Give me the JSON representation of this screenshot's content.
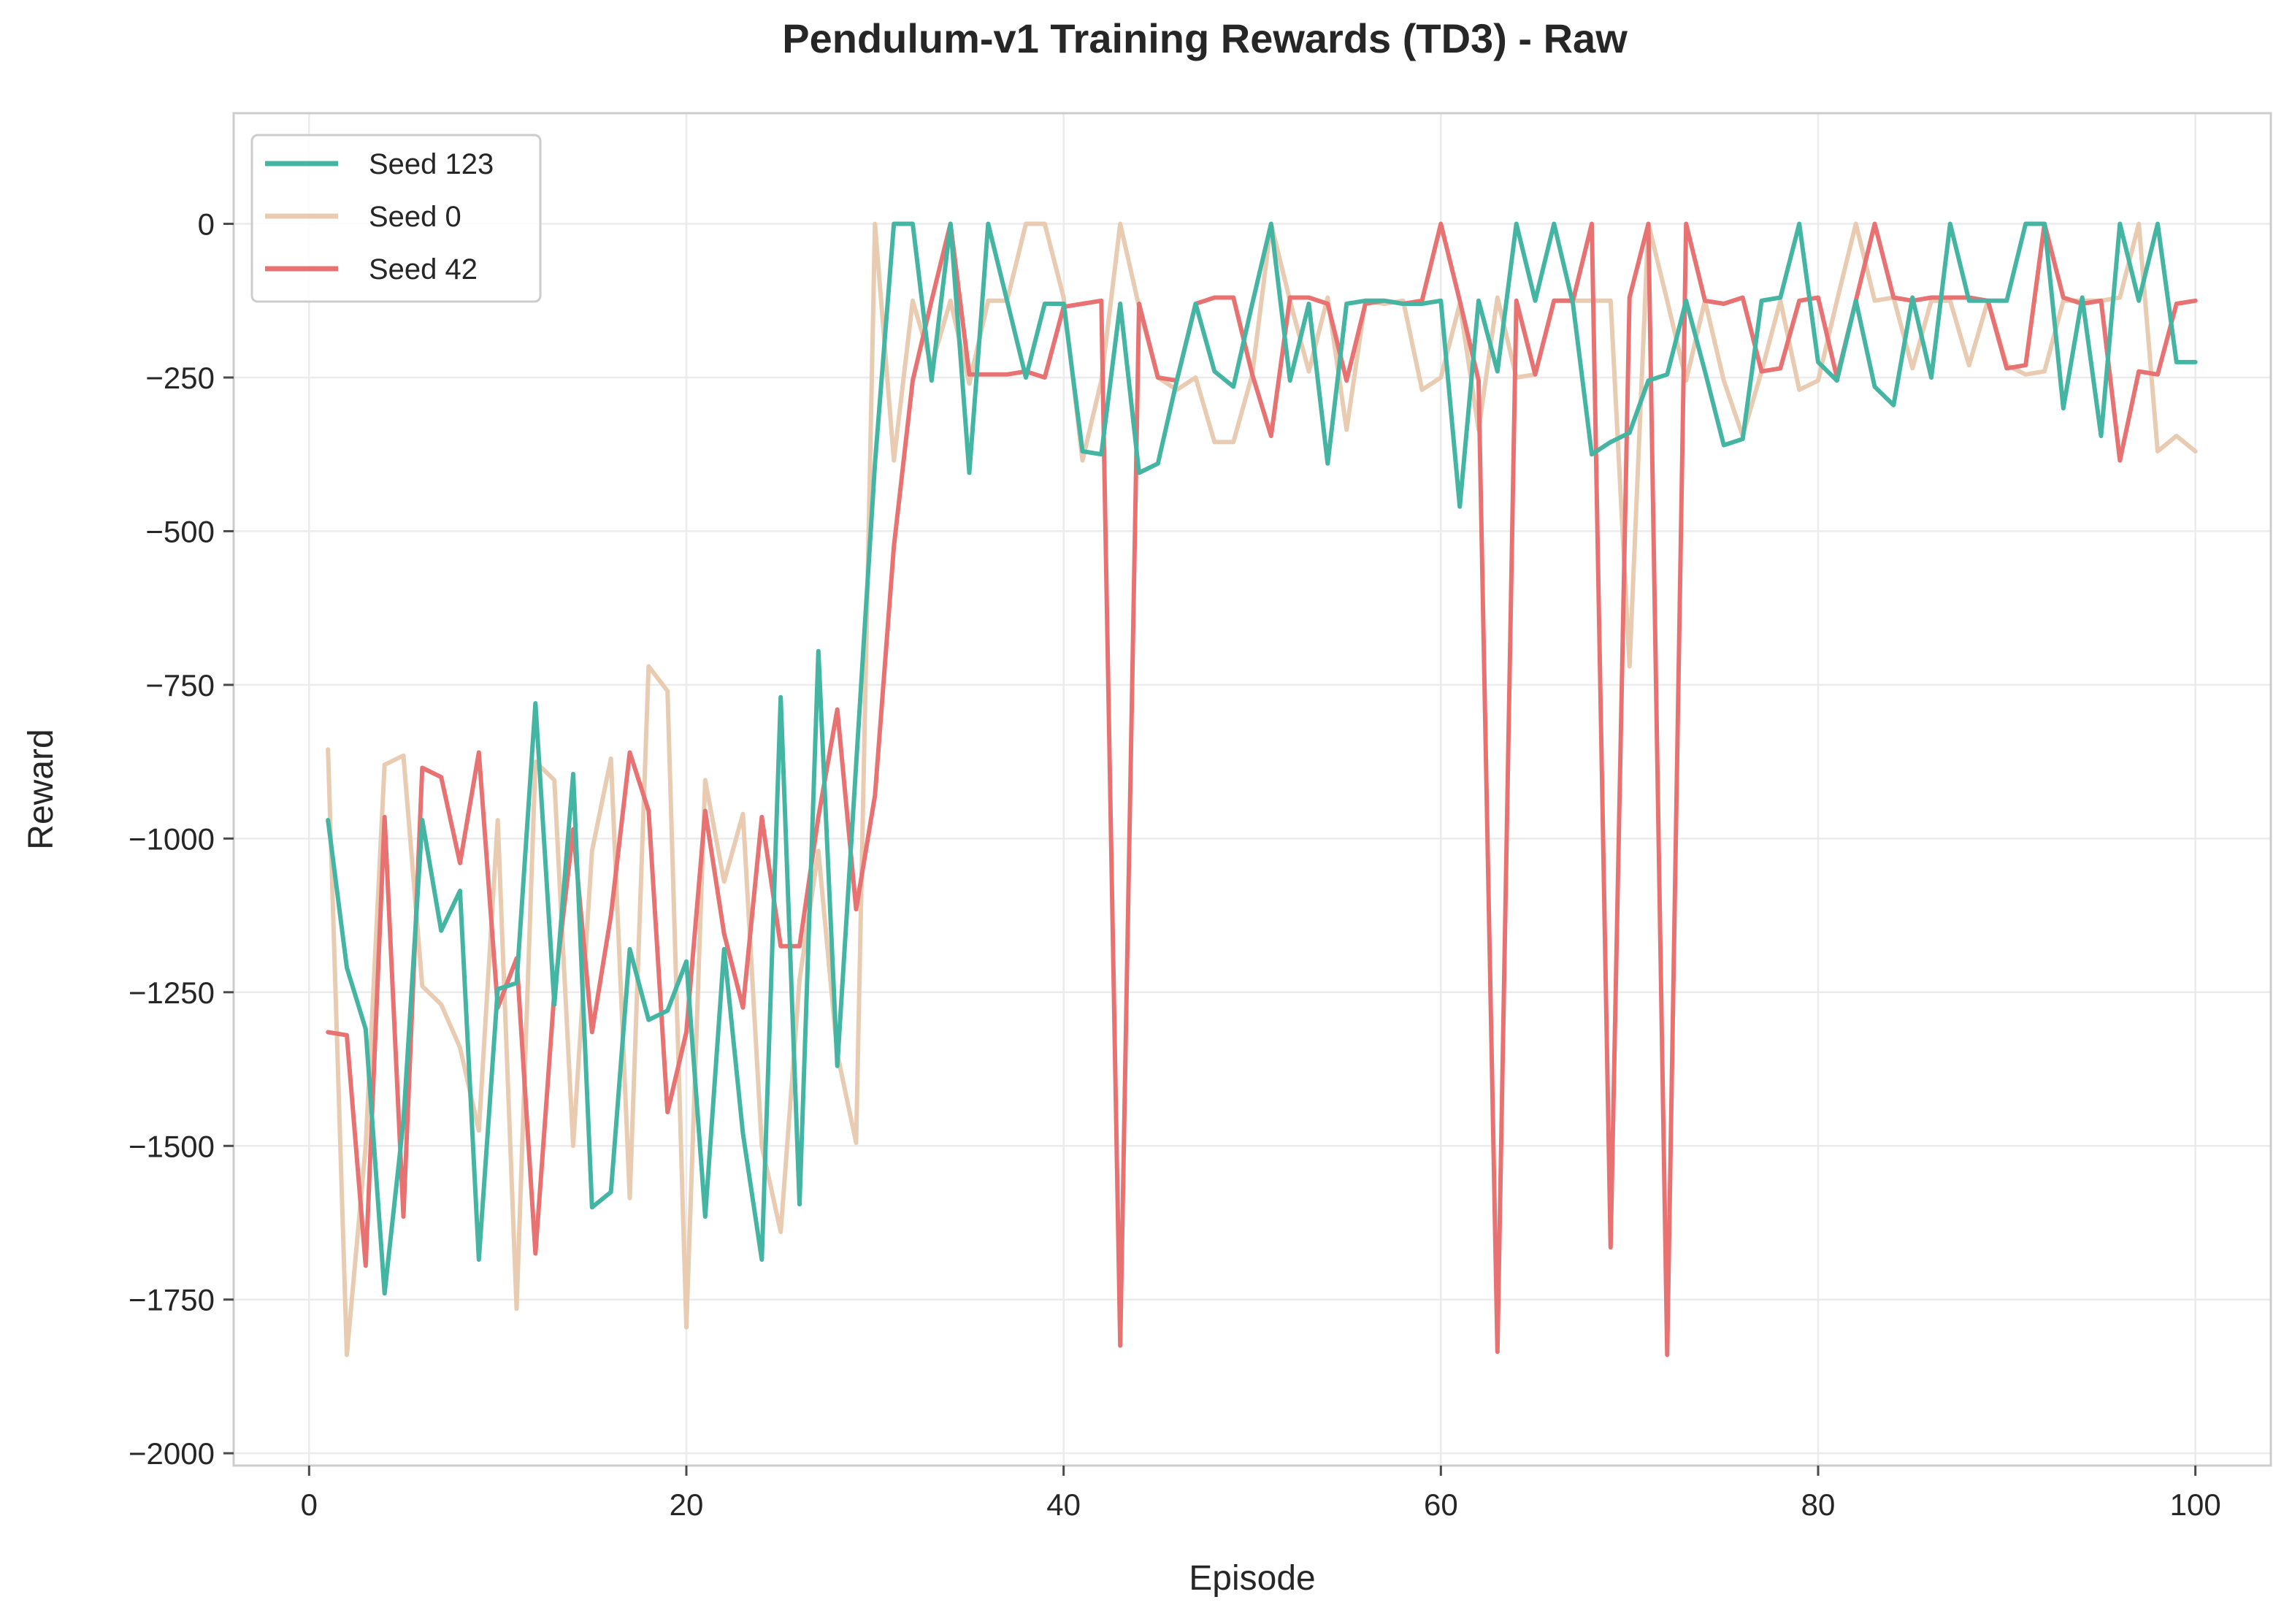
{
  "chart_data": {
    "type": "line",
    "title": "Pendulum-v1 Training Rewards (TD3) - Raw",
    "xlabel": "Episode",
    "ylabel": "Reward",
    "xlim": [
      -4,
      104
    ],
    "ylim": [
      -2020,
      180
    ],
    "xticks": [
      0,
      20,
      40,
      60,
      80,
      100
    ],
    "xtick_labels": [
      "0",
      "20",
      "40",
      "60",
      "80",
      "100"
    ],
    "yticks": [
      0,
      -250,
      -500,
      -750,
      -1000,
      -1250,
      -1500,
      -1750,
      -2000
    ],
    "ytick_labels": [
      "0",
      "−250",
      "−500",
      "−750",
      "−1000",
      "−1250",
      "−1500",
      "−1750",
      "−2000"
    ],
    "grid": true,
    "legend_position": "top-left",
    "series": [
      {
        "name": "Seed 123",
        "color": "#45b5a3",
        "x": [
          1,
          2,
          3,
          4,
          5,
          6,
          7,
          8,
          9,
          10,
          11,
          12,
          13,
          14,
          15,
          16,
          17,
          18,
          19,
          20,
          21,
          22,
          23,
          24,
          25,
          26,
          27,
          28,
          29,
          30,
          31,
          32,
          33,
          34,
          35,
          36,
          37,
          38,
          39,
          40,
          41,
          42,
          43,
          44,
          45,
          46,
          47,
          48,
          49,
          50,
          51,
          52,
          53,
          54,
          55,
          56,
          57,
          58,
          59,
          60,
          61,
          62,
          63,
          64,
          65,
          66,
          67,
          68,
          69,
          70,
          71,
          72,
          73,
          74,
          75,
          76,
          77,
          78,
          79,
          80,
          81,
          82,
          83,
          84,
          85,
          86,
          87,
          88,
          89,
          90,
          91,
          92,
          93,
          94,
          95,
          96,
          97,
          98,
          99,
          100
        ],
        "y": [
          -970,
          -1210,
          -1310,
          -1740,
          -1460,
          -970,
          -1150,
          -1085,
          -1685,
          -1245,
          -1235,
          -780,
          -1270,
          -895,
          -1600,
          -1575,
          -1180,
          -1295,
          -1280,
          -1200,
          -1615,
          -1180,
          -1480,
          -1685,
          -770,
          -1595,
          -695,
          -1370,
          -880,
          -390,
          0,
          0,
          -255,
          0,
          -405,
          0,
          -125,
          -250,
          -130,
          -130,
          -370,
          -375,
          -130,
          -405,
          -390,
          -255,
          -130,
          -240,
          -265,
          -130,
          0,
          -255,
          -130,
          -390,
          -130,
          -125,
          -125,
          -130,
          -130,
          -125,
          -460,
          -125,
          -240,
          0,
          -125,
          0,
          -130,
          -375,
          -355,
          -340,
          -255,
          -245,
          -125,
          -240,
          -360,
          -350,
          -125,
          -120,
          0,
          -225,
          -255,
          -125,
          -265,
          -295,
          -120,
          -250,
          0,
          -125,
          -125,
          -125,
          0,
          0,
          -300,
          -120,
          -345,
          0,
          -125,
          0,
          -225,
          -225
        ]
      },
      {
        "name": "Seed 0",
        "color": "#e8cbb0",
        "x": [
          1,
          2,
          3,
          4,
          5,
          6,
          7,
          8,
          9,
          10,
          11,
          12,
          13,
          14,
          15,
          16,
          17,
          18,
          19,
          20,
          21,
          22,
          23,
          24,
          25,
          26,
          27,
          28,
          29,
          30,
          31,
          32,
          33,
          34,
          35,
          36,
          37,
          38,
          39,
          40,
          41,
          42,
          43,
          44,
          45,
          46,
          47,
          48,
          49,
          50,
          51,
          52,
          53,
          54,
          55,
          56,
          57,
          58,
          59,
          60,
          61,
          62,
          63,
          64,
          65,
          66,
          67,
          68,
          69,
          70,
          71,
          72,
          73,
          74,
          75,
          76,
          77,
          78,
          79,
          80,
          81,
          82,
          83,
          84,
          85,
          86,
          87,
          88,
          89,
          90,
          91,
          92,
          93,
          94,
          95,
          96,
          97,
          98,
          99,
          100
        ],
        "y": [
          -855,
          -1840,
          -1500,
          -880,
          -865,
          -1240,
          -1270,
          -1340,
          -1475,
          -970,
          -1765,
          -875,
          -905,
          -1500,
          -1020,
          -870,
          -1585,
          -720,
          -760,
          -1795,
          -905,
          -1070,
          -960,
          -1500,
          -1640,
          -1230,
          -1020,
          -1350,
          -1495,
          0,
          -385,
          -125,
          -230,
          -125,
          -260,
          -125,
          -125,
          0,
          0,
          -120,
          -385,
          -255,
          0,
          -135,
          -250,
          -270,
          -250,
          -355,
          -355,
          -245,
          0,
          -125,
          -240,
          -120,
          -335,
          -125,
          -130,
          -125,
          -270,
          -250,
          -130,
          -335,
          -120,
          -250,
          -245,
          -125,
          -125,
          -125,
          -125,
          -720,
          0,
          -125,
          -255,
          -125,
          -255,
          -345,
          -240,
          -125,
          -270,
          -255,
          -125,
          0,
          -125,
          -120,
          -235,
          -125,
          -125,
          -230,
          -125,
          -230,
          -245,
          -240,
          -125,
          -125,
          -125,
          -120,
          0,
          -370,
          -345,
          -370
        ]
      },
      {
        "name": "Seed 42",
        "color": "#e87272",
        "x": [
          1,
          2,
          3,
          4,
          5,
          6,
          7,
          8,
          9,
          10,
          11,
          12,
          13,
          14,
          15,
          16,
          17,
          18,
          19,
          20,
          21,
          22,
          23,
          24,
          25,
          26,
          27,
          28,
          29,
          30,
          31,
          32,
          33,
          34,
          35,
          36,
          37,
          38,
          39,
          40,
          41,
          42,
          43,
          44,
          45,
          46,
          47,
          48,
          49,
          50,
          51,
          52,
          53,
          54,
          55,
          56,
          57,
          58,
          59,
          60,
          61,
          62,
          63,
          64,
          65,
          66,
          67,
          68,
          69,
          70,
          71,
          72,
          73,
          74,
          75,
          76,
          77,
          78,
          79,
          80,
          81,
          82,
          83,
          84,
          85,
          86,
          87,
          88,
          89,
          90,
          91,
          92,
          93,
          94,
          95,
          96,
          97,
          98,
          99,
          100
        ],
        "y": [
          -1315,
          -1320,
          -1695,
          -965,
          -1615,
          -885,
          -900,
          -1040,
          -860,
          -1275,
          -1195,
          -1675,
          -1250,
          -985,
          -1315,
          -1125,
          -860,
          -955,
          -1445,
          -1315,
          -955,
          -1155,
          -1275,
          -965,
          -1175,
          -1175,
          -965,
          -790,
          -1115,
          -930,
          -525,
          -255,
          -125,
          0,
          -245,
          -245,
          -245,
          -240,
          -250,
          -135,
          -130,
          -125,
          -1825,
          -130,
          -250,
          -255,
          -130,
          -120,
          -120,
          -245,
          -345,
          -120,
          -120,
          -130,
          -255,
          -130,
          -125,
          -130,
          -125,
          0,
          -125,
          -255,
          -1835,
          -125,
          -245,
          -125,
          -125,
          0,
          -1665,
          -120,
          0,
          -1840,
          0,
          -125,
          -130,
          -120,
          -240,
          -235,
          -125,
          -120,
          -250,
          -125,
          0,
          -120,
          -125,
          -120,
          -120,
          -120,
          -125,
          -235,
          -230,
          0,
          -120,
          -130,
          -125,
          -385,
          -240,
          -245,
          -130,
          -125
        ]
      }
    ]
  }
}
